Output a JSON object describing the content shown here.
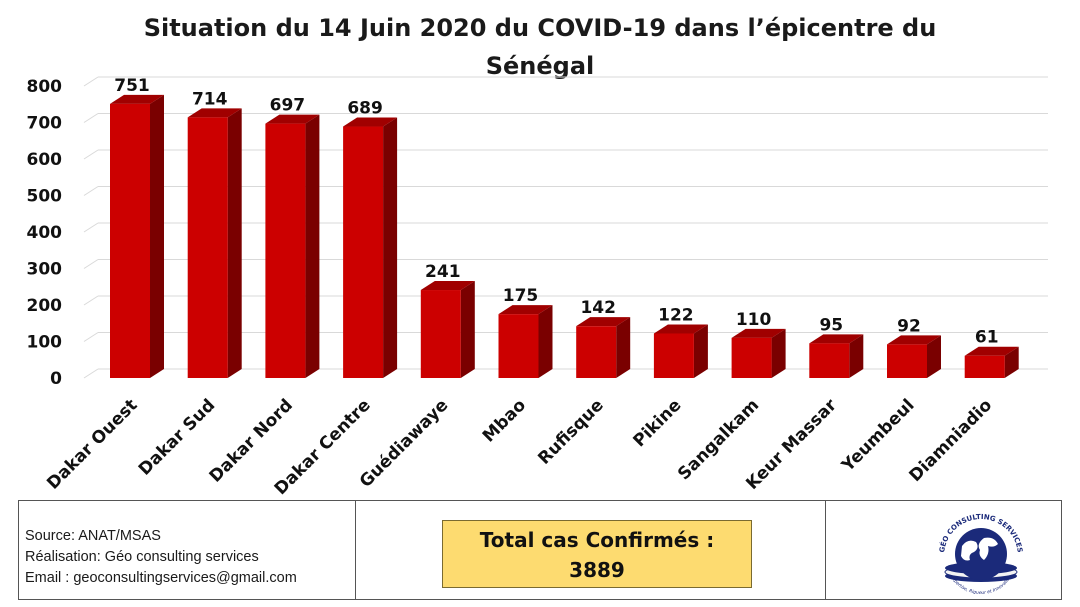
{
  "chart_data": {
    "type": "bar",
    "title_line1": "Situation du 14 Juin 2020 du COVID-19 dans l’épicentre du",
    "title_line2": "Sénégal",
    "categories": [
      "Dakar Ouest",
      "Dakar Sud",
      "Dakar Nord",
      "Dakar Centre",
      "Guédiawaye",
      "Mbao",
      "Rufisque",
      "Pikine",
      "Sangalkam",
      "Keur Massar",
      "Yeumbeul",
      "Diamniadio"
    ],
    "values": [
      751,
      714,
      697,
      689,
      241,
      175,
      142,
      122,
      110,
      95,
      92,
      61
    ],
    "yticks": [
      0,
      100,
      200,
      300,
      400,
      500,
      600,
      700,
      800
    ],
    "ylim": [
      0,
      800
    ],
    "grid": true,
    "bar_color": "#cc0000",
    "bar_side_color": "#7a0000",
    "bar_top_color": "#a00000"
  },
  "footer": {
    "source": "Source: ANAT/MSAS",
    "realisation": "Réalisation: Géo consulting services",
    "email": "Email : geoconsultingservices@gmail.com",
    "total_label": "Total cas Confirmés :",
    "total_value": "3889",
    "logo_text": "GÉO CONSULTING SERVICES",
    "logo_slogan": "Expertise, Rigueur et Innovation"
  }
}
